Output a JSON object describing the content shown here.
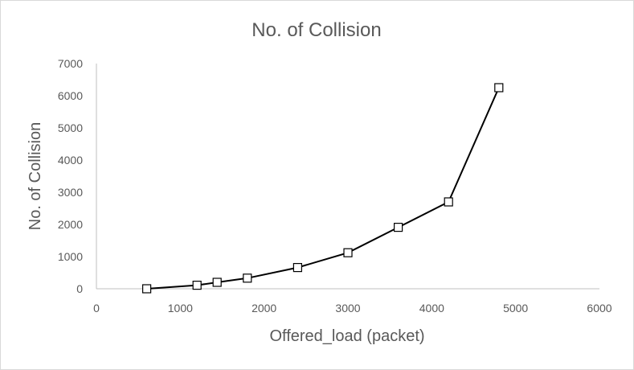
{
  "chart_data": {
    "type": "scatter",
    "title": "No. of Collision",
    "xlabel": "Offered_load (packet)",
    "ylabel": "No. of Collision",
    "xlim": [
      0,
      6000
    ],
    "ylim": [
      0,
      7000
    ],
    "x_ticks": [
      "0",
      "1000",
      "2000",
      "3000",
      "4000",
      "5000",
      "6000"
    ],
    "y_ticks": [
      "0",
      "1000",
      "2000",
      "3000",
      "4000",
      "5000",
      "6000",
      "7000"
    ],
    "grid": false,
    "legend": "none",
    "marker": "square-open",
    "line_color": "#000000",
    "series": [
      {
        "x": [
          600,
          1200,
          1440,
          1800,
          2400,
          3000,
          3600,
          4200,
          4800
        ],
        "y": [
          0,
          110,
          200,
          330,
          660,
          1120,
          1910,
          2700,
          6250
        ]
      }
    ]
  }
}
